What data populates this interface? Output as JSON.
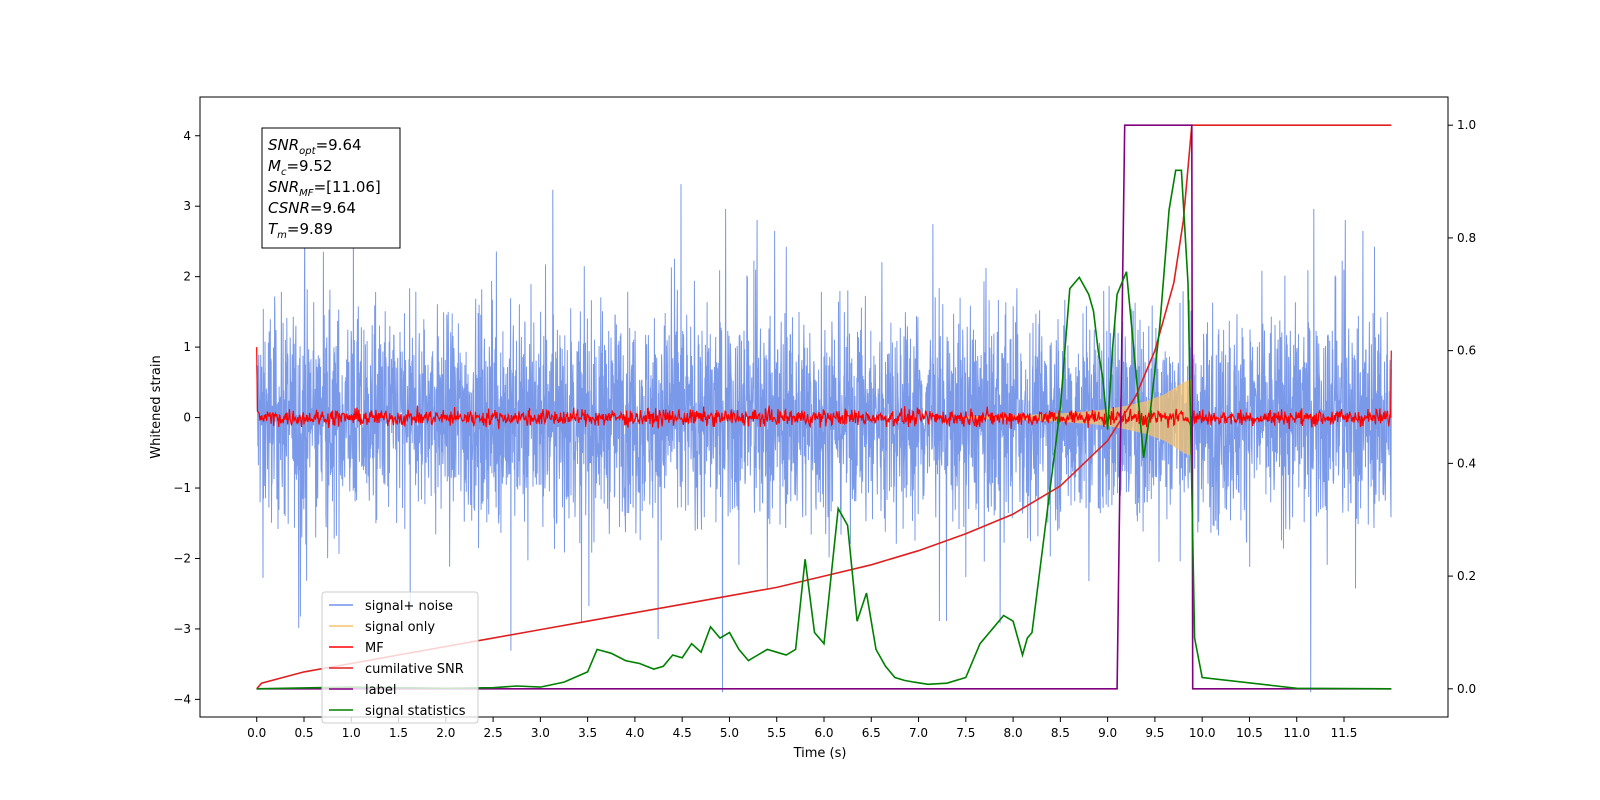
{
  "chart_data": {
    "type": "line",
    "xlabel": "Time (s)",
    "ylabel": "Whitened strain",
    "xlim": [
      -0.6,
      12.6
    ],
    "ylim": [
      -4.25,
      4.55
    ],
    "y2lim": [
      -0.05,
      1.05
    ],
    "xticks": [
      "0.0",
      "0.5",
      "1.0",
      "1.5",
      "2.0",
      "2.5",
      "3.0",
      "3.5",
      "4.0",
      "4.5",
      "5.0",
      "5.5",
      "6.0",
      "6.5",
      "7.0",
      "7.5",
      "8.0",
      "8.5",
      "9.0",
      "9.5",
      "10.0",
      "10.5",
      "11.0",
      "11.5"
    ],
    "yticks": [
      "4",
      "3",
      "2",
      "1",
      "0",
      "−1",
      "−2",
      "−3",
      "−4"
    ],
    "y2ticks": [
      "1.0",
      "0.8",
      "0.6",
      "0.4",
      "0.2",
      "0.0"
    ],
    "legend_position": "lower-left",
    "annotation": {
      "lines": [
        {
          "name": "SNR",
          "sub": "opt",
          "value": "=9.64"
        },
        {
          "name": "M",
          "sub": "c",
          "value": "=9.52"
        },
        {
          "name": "SNR",
          "sub": "MF",
          "value": "=[11.06]"
        },
        {
          "name": "CSNR",
          "sub": "",
          "value": "=9.64"
        },
        {
          "name": "T",
          "sub": "m",
          "value": "=9.89"
        }
      ]
    },
    "series": [
      {
        "name": "signal+ noise",
        "color": "#7393e8",
        "axis": "left",
        "note": "noise band approx ±1.5 (spikes to ±3.9) over 0–12 s"
      },
      {
        "name": "signal only",
        "color": "#f5c36b",
        "axis": "left",
        "envelope_x": [
          7.5,
          8.0,
          8.5,
          8.8,
          9.0,
          9.2,
          9.4,
          9.6,
          9.8,
          9.89
        ],
        "envelope_y": [
          0.02,
          0.03,
          0.06,
          0.09,
          0.12,
          0.17,
          0.23,
          0.33,
          0.5,
          0.55
        ]
      },
      {
        "name": "MF",
        "color": "#ff0000",
        "axis": "left",
        "note": "noise around 0 with amplitude about 0.12; ends near 0.95 at t = 12"
      },
      {
        "name": "cumilative SNR",
        "color": "#e02020",
        "axis": "right",
        "x": [
          0.0,
          0.05,
          0.5,
          1.0,
          1.5,
          2.0,
          2.5,
          3.0,
          3.5,
          4.0,
          4.5,
          5.0,
          5.5,
          6.0,
          6.5,
          7.0,
          7.5,
          8.0,
          8.5,
          9.0,
          9.3,
          9.5,
          9.7,
          9.8,
          9.89,
          12.0
        ],
        "y": [
          0.0,
          0.01,
          0.03,
          0.045,
          0.06,
          0.075,
          0.09,
          0.105,
          0.12,
          0.135,
          0.15,
          0.165,
          0.18,
          0.2,
          0.22,
          0.245,
          0.275,
          0.31,
          0.36,
          0.44,
          0.52,
          0.6,
          0.72,
          0.83,
          1.0,
          1.0
        ]
      },
      {
        "name": "label",
        "color": "#800080",
        "axis": "right",
        "x": [
          0.0,
          9.1,
          9.18,
          9.89,
          9.9,
          12.0
        ],
        "y": [
          0.0,
          0.0,
          1.0,
          1.0,
          0.0,
          0.0
        ]
      },
      {
        "name": "signal statistics",
        "color": "#008000",
        "axis": "right",
        "x": [
          0.0,
          1.0,
          2.0,
          2.5,
          2.75,
          3.0,
          3.25,
          3.5,
          3.6,
          3.75,
          3.9,
          4.05,
          4.2,
          4.3,
          4.4,
          4.5,
          4.6,
          4.7,
          4.8,
          4.9,
          5.0,
          5.1,
          5.2,
          5.3,
          5.4,
          5.5,
          5.6,
          5.7,
          5.8,
          5.9,
          6.0,
          6.15,
          6.25,
          6.35,
          6.45,
          6.55,
          6.65,
          6.75,
          6.85,
          6.95,
          7.1,
          7.3,
          7.5,
          7.65,
          7.8,
          7.9,
          8.0,
          8.1,
          8.15,
          8.2,
          8.35,
          8.5,
          8.6,
          8.7,
          8.8,
          8.85,
          8.9,
          8.95,
          9.0,
          9.05,
          9.1,
          9.2,
          9.3,
          9.38,
          9.45,
          9.55,
          9.65,
          9.72,
          9.78,
          9.85,
          9.92,
          10.0,
          11.0,
          12.0
        ],
        "y": [
          0.0,
          0.003,
          0.001,
          0.002,
          0.005,
          0.003,
          0.012,
          0.03,
          0.07,
          0.063,
          0.05,
          0.045,
          0.035,
          0.04,
          0.06,
          0.055,
          0.08,
          0.065,
          0.11,
          0.09,
          0.1,
          0.07,
          0.05,
          0.06,
          0.07,
          0.065,
          0.06,
          0.07,
          0.23,
          0.1,
          0.08,
          0.32,
          0.29,
          0.12,
          0.17,
          0.07,
          0.04,
          0.02,
          0.015,
          0.012,
          0.008,
          0.01,
          0.02,
          0.08,
          0.11,
          0.13,
          0.12,
          0.06,
          0.09,
          0.1,
          0.3,
          0.5,
          0.71,
          0.73,
          0.7,
          0.67,
          0.6,
          0.55,
          0.46,
          0.6,
          0.7,
          0.74,
          0.56,
          0.41,
          0.49,
          0.64,
          0.85,
          0.92,
          0.92,
          0.72,
          0.09,
          0.02,
          0.001,
          0.0
        ]
      }
    ]
  }
}
